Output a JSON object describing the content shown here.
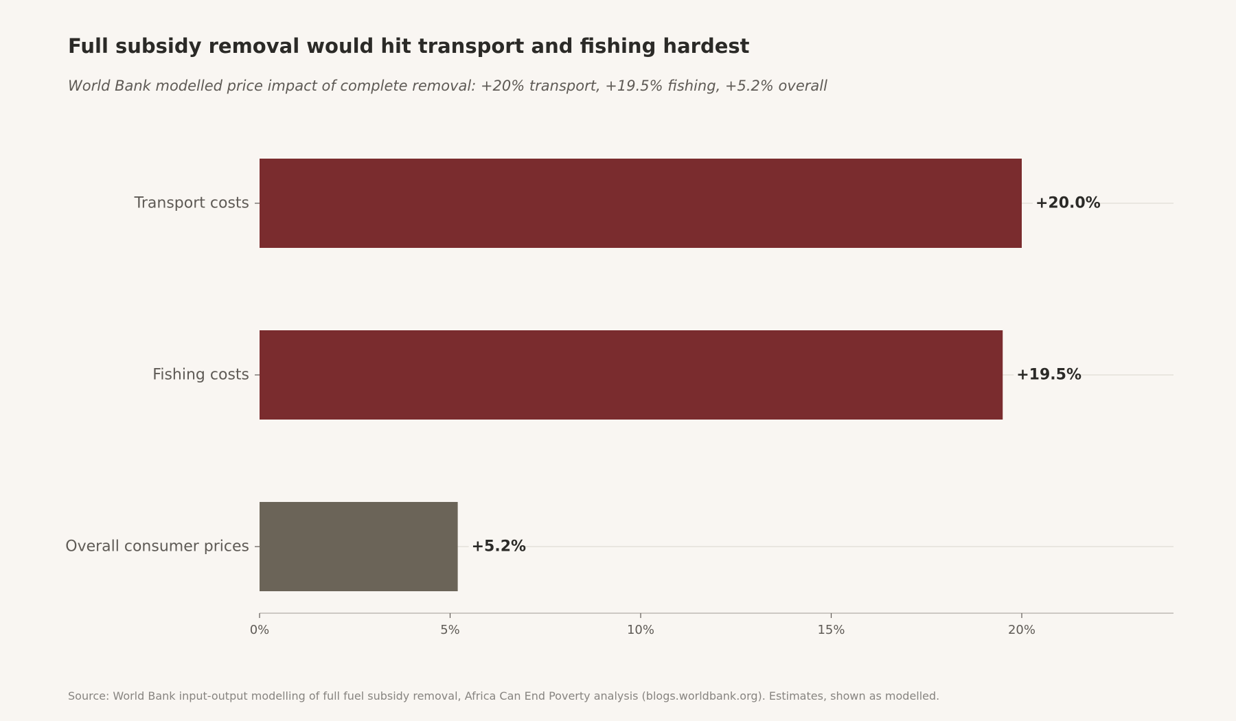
{
  "title": "Full subsidy removal would hit transport and fishing hardest",
  "subtitle": "World Bank modelled price impact of complete removal: +20% transport, +19.5% fishing, +5.2% overall",
  "source": "Source: World Bank input-output modelling of full fuel subsidy removal, Africa Can End Poverty analysis (blogs.worldbank.org). Estimates, shown as modelled.",
  "chart_data": {
    "type": "bar",
    "orientation": "horizontal",
    "title": "Full subsidy removal would hit transport and fishing hardest",
    "subtitle": "World Bank modelled price impact of complete removal: +20% transport, +19.5% fishing, +5.2% overall",
    "xlabel": "",
    "ylabel": "",
    "categories": [
      "Transport costs",
      "Fishing costs",
      "Overall consumer prices"
    ],
    "values": [
      20.0,
      19.5,
      5.2
    ],
    "value_labels": [
      "+20.0%",
      "+19.5%",
      "+5.2%"
    ],
    "colors": [
      "#7a2c2e",
      "#7a2c2e",
      "#6b6458"
    ],
    "xlim": [
      0,
      24
    ],
    "x_ticks": [
      0,
      5,
      10,
      15,
      20
    ],
    "x_tick_labels": [
      "0%",
      "5%",
      "10%",
      "15%",
      "20%"
    ],
    "grid": "horizontal guide lines per category",
    "legend": "none"
  }
}
